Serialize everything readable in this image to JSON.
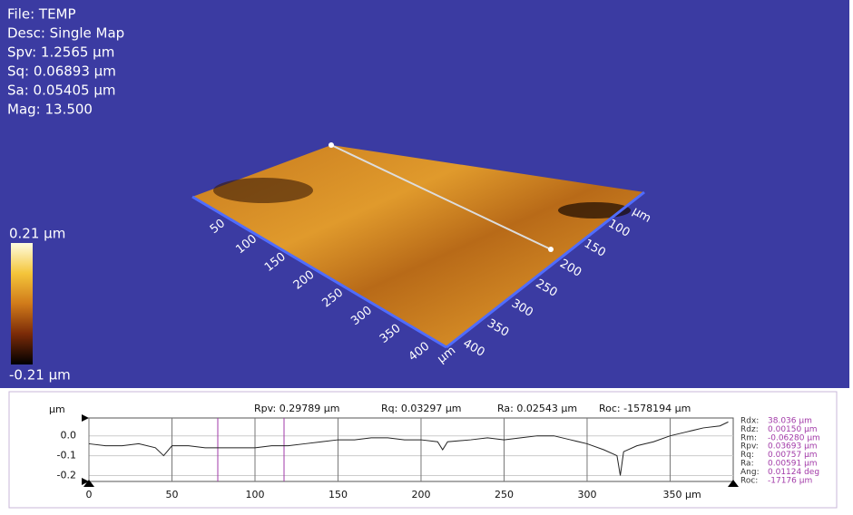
{
  "info": {
    "file": "File: TEMP",
    "desc": "Desc: Single Map",
    "spv": "Spv: 1.2565 µm",
    "sq": "Sq: 0.06893 µm",
    "sa": "Sa: 0.05405 µm",
    "mag": "Mag: 13.500"
  },
  "colorbar": {
    "max_label": "0.21 µm",
    "min_label": "-0.21 µm"
  },
  "surface_axes": {
    "left_ticks": [
      "50",
      "100",
      "150",
      "200",
      "250",
      "300",
      "350",
      "400"
    ],
    "left_unit": "µm",
    "right_ticks": [
      "100",
      "150",
      "200",
      "250",
      "300",
      "350",
      "400"
    ],
    "right_unit": "µm"
  },
  "chart_data": {
    "type": "line",
    "stats": [
      "Rpv: 0.29789 µm",
      "Rq: 0.03297 µm",
      "Ra: 0.02543 µm",
      "Roc: -1578194 µm"
    ],
    "y_label": "µm",
    "x": [
      0,
      10,
      20,
      30,
      40,
      45,
      50,
      60,
      70,
      80,
      90,
      100,
      110,
      120,
      130,
      140,
      150,
      160,
      170,
      180,
      190,
      200,
      210,
      213,
      216,
      230,
      240,
      250,
      260,
      270,
      280,
      290,
      300,
      310,
      318,
      320,
      322,
      330,
      340,
      350,
      360,
      370,
      380,
      385
    ],
    "values": [
      -0.04,
      -0.05,
      -0.05,
      -0.04,
      -0.06,
      -0.1,
      -0.05,
      -0.05,
      -0.06,
      -0.06,
      -0.06,
      -0.06,
      -0.05,
      -0.05,
      -0.04,
      -0.03,
      -0.02,
      -0.02,
      -0.01,
      -0.01,
      -0.02,
      -0.02,
      -0.03,
      -0.07,
      -0.03,
      -0.02,
      -0.01,
      -0.02,
      -0.01,
      0.0,
      0.0,
      -0.02,
      -0.04,
      -0.07,
      -0.1,
      -0.2,
      -0.08,
      -0.05,
      -0.03,
      0.0,
      0.02,
      0.04,
      0.05,
      0.07
    ],
    "color": "#222222",
    "xlim": [
      0,
      388
    ],
    "ylim": [
      -0.23,
      0.09
    ],
    "xticks": [
      0,
      50,
      100,
      150,
      200,
      250,
      300,
      {
        "value": 350,
        "label": "350 µm"
      }
    ],
    "yticks": [
      {
        "value": 0,
        "label": "0.0"
      },
      -0.1,
      -0.2
    ],
    "grid": true,
    "right_stats": [
      {
        "label": "Rdx:",
        "value": "38.036 µm"
      },
      {
        "label": "Rdz:",
        "value": "0.00150 µm"
      },
      {
        "label": "Rm:",
        "value": "-0.06280 µm"
      },
      {
        "label": "Rpv:",
        "value": "0.03693 µm"
      },
      {
        "label": "Rq:",
        "value": "0.00757 µm"
      },
      {
        "label": "Ra:",
        "value": "0.00591 µm"
      },
      {
        "label": "Ang:",
        "value": "0.01124 deg"
      },
      {
        "label": "Roc:",
        "value": "-17176 µm"
      }
    ]
  }
}
